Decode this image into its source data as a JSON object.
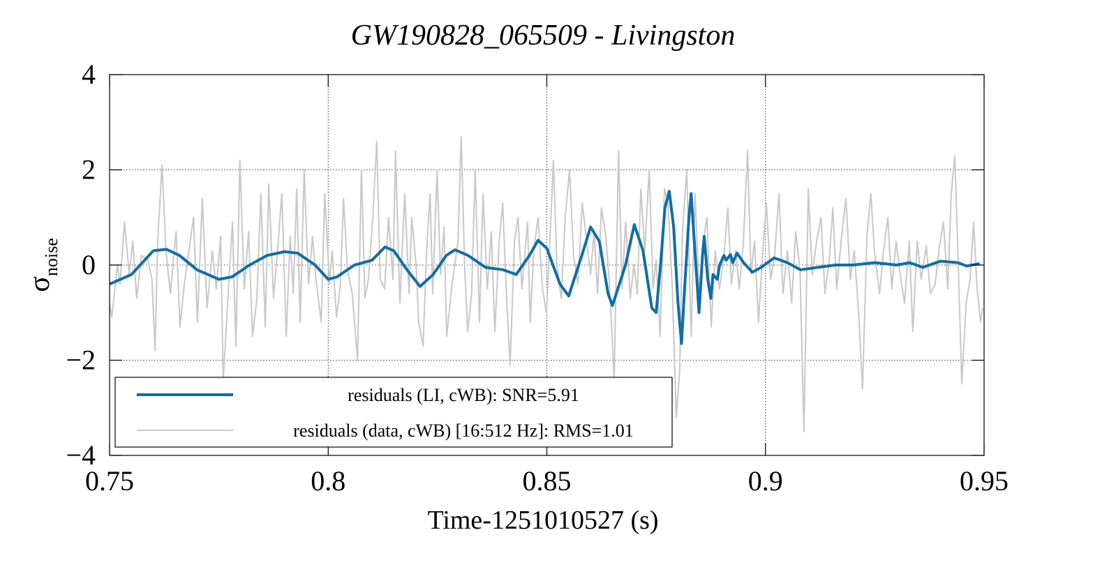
{
  "chart_data": {
    "type": "line",
    "title": "GW190828_065509 - Livingston",
    "xlabel": "Time-1251010527 (s)",
    "ylabel": "σ",
    "ylabel_sub": "noise",
    "xlim": [
      0.75,
      0.95
    ],
    "ylim": [
      -4,
      4
    ],
    "xticks": [
      0.75,
      0.8,
      0.85,
      0.9,
      0.95
    ],
    "yticks": [
      4,
      2,
      0,
      {
        "value": -2,
        "label": "−2"
      },
      {
        "value": -4,
        "label": "−4"
      }
    ],
    "grid": true,
    "legend": "lower left",
    "series": [
      {
        "name": "residuals (data, cWB) [16:512 Hz]: RMS=1.01",
        "color": "#c8c8c8",
        "x": [
          0.75,
          0.7505,
          0.7518,
          0.7524,
          0.7534,
          0.7545,
          0.7553,
          0.7562,
          0.7573,
          0.7588,
          0.7597,
          0.7604,
          0.761,
          0.762,
          0.7629,
          0.7639,
          0.7652,
          0.7661,
          0.7671,
          0.768,
          0.7692,
          0.7701,
          0.7712,
          0.7723,
          0.7735,
          0.7744,
          0.7754,
          0.776,
          0.777,
          0.7781,
          0.7789,
          0.7798,
          0.7808,
          0.7818,
          0.7827,
          0.7837,
          0.7846,
          0.7856,
          0.7864,
          0.7875,
          0.7885,
          0.7894,
          0.7904,
          0.7913,
          0.792,
          0.7928,
          0.7936,
          0.7945,
          0.7955,
          0.7964,
          0.7972,
          0.7984,
          0.7992,
          0.8003,
          0.8009,
          0.8019,
          0.8028,
          0.8035,
          0.8044,
          0.8055,
          0.8067,
          0.8076,
          0.8084,
          0.8092,
          0.8102,
          0.8111,
          0.8119,
          0.8129,
          0.8138,
          0.8148,
          0.8154,
          0.8164,
          0.8175,
          0.8185,
          0.8191,
          0.8201,
          0.8207,
          0.8217,
          0.8225,
          0.8233,
          0.8239,
          0.8249,
          0.8257,
          0.8265,
          0.8271,
          0.8282,
          0.8297,
          0.8304,
          0.8312,
          0.8319,
          0.8328,
          0.8336,
          0.8346,
          0.8354,
          0.8364,
          0.8373,
          0.8381,
          0.8391,
          0.8399,
          0.8408,
          0.8416,
          0.8426,
          0.8434,
          0.8443,
          0.8456,
          0.8462,
          0.847,
          0.848,
          0.849,
          0.8499,
          0.8507,
          0.8515,
          0.8523,
          0.8533,
          0.8542,
          0.8552,
          0.8561,
          0.8571,
          0.8581,
          0.859,
          0.86,
          0.8608,
          0.8616,
          0.8625,
          0.8635,
          0.8644,
          0.8654,
          0.8664,
          0.8672,
          0.868,
          0.8691,
          0.8699,
          0.8707,
          0.8715,
          0.8724,
          0.8734,
          0.8743,
          0.875,
          0.8759,
          0.8769,
          0.8777,
          0.8787,
          0.8796,
          0.8804,
          0.881,
          0.882,
          0.883,
          0.8839,
          0.8849,
          0.8858,
          0.8866,
          0.8876,
          0.8885,
          0.8895,
          0.8905,
          0.8914,
          0.8922,
          0.8932,
          0.894,
          0.8949,
          0.8959,
          0.8967,
          0.8975,
          0.8984,
          0.8994,
          0.9002,
          0.9012,
          0.9021,
          0.9031,
          0.904,
          0.905,
          0.906,
          0.9069,
          0.9079,
          0.9088,
          0.9098,
          0.9107,
          0.9117,
          0.9127,
          0.9136,
          0.9146,
          0.9154,
          0.9163,
          0.9174,
          0.9184,
          0.9194,
          0.9203,
          0.9213,
          0.9222,
          0.9232,
          0.9241,
          0.9249,
          0.9261,
          0.927,
          0.928,
          0.9289,
          0.9299,
          0.9308,
          0.9318,
          0.9329,
          0.9337,
          0.9347,
          0.9356,
          0.9368,
          0.9377,
          0.9388,
          0.9398,
          0.9407,
          0.9417,
          0.9425,
          0.9433,
          0.9441,
          0.9449,
          0.9459,
          0.9468,
          0.9476,
          0.9484,
          0.9492,
          0.9497
        ],
        "values": [
          -0.8,
          -1.1,
          0.0,
          -0.4,
          0.9,
          -0.2,
          0.5,
          -0.7,
          0.2,
          0.1,
          -0.3,
          -1.8,
          0.5,
          2.1,
          0.3,
          -0.6,
          0.7,
          -1.3,
          -0.4,
          0.2,
          1.0,
          -1.2,
          1.4,
          -0.9,
          0.3,
          -0.5,
          0.6,
          -2.4,
          -0.8,
          0.9,
          -1.7,
          2.2,
          -0.5,
          0.7,
          -1.5,
          -0.7,
          1.5,
          -1.3,
          1.7,
          -0.7,
          0.4,
          1.5,
          -1.5,
          0.6,
          -0.6,
          1.6,
          -1.2,
          2.0,
          -0.4,
          0.6,
          -0.3,
          -1.2,
          1.5,
          -0.4,
          0.3,
          -1.1,
          -0.4,
          1.4,
          -0.1,
          -0.6,
          -2.0,
          2.0,
          -0.7,
          -0.3,
          1.0,
          2.6,
          -0.3,
          -0.5,
          1.0,
          -0.3,
          2.4,
          -0.8,
          1.5,
          -0.6,
          1.0,
          0.0,
          -1.2,
          -1.7,
          0.3,
          1.5,
          -0.6,
          2.0,
          -0.2,
          0.8,
          -1.5,
          -0.5,
          0.5,
          2.7,
          0.0,
          -1.4,
          -0.6,
          2.0,
          -1.2,
          1.5,
          -0.5,
          0.7,
          -1.4,
          0.5,
          1.3,
          -0.7,
          -2.1,
          0.5,
          1.0,
          -0.5,
          0.9,
          -1.2,
          0.3,
          1.0,
          -0.5,
          -1.0,
          0.5,
          2.2,
          0.0,
          -0.7,
          1.0,
          2.0,
          0.2,
          -0.4,
          1.3,
          0.6,
          -0.2,
          0.7,
          -0.6,
          1.2,
          0.6,
          -0.5,
          -2.4,
          2.4,
          -0.5,
          0.9,
          -0.7,
          0.0,
          -0.6,
          1.6,
          0.3,
          2.0,
          -0.5,
          0.1,
          -1.5,
          1.6,
          1.3,
          -0.5,
          -3.2,
          -2.2,
          0.7,
          2.0,
          -1.5,
          1.5,
          -0.7,
          0.5,
          1.0,
          -1.3,
          0.3,
          -0.5,
          0.2,
          1.2,
          -0.4,
          0.3,
          -0.5,
          0.4,
          2.4,
          -0.2,
          0.5,
          -1.2,
          0.3,
          1.3,
          -0.3,
          0.2,
          1.5,
          -0.6,
          0.3,
          -0.8,
          0.7,
          -0.1,
          -3.5,
          1.6,
          -0.2,
          0.5,
          1.0,
          -0.6,
          0.1,
          1.2,
          -0.5,
          0.6,
          1.4,
          -0.3,
          0.3,
          -1.0,
          -2.6,
          0.6,
          1.5,
          0.3,
          -0.6,
          0.3,
          1.0,
          -0.5,
          0.5,
          -0.2,
          -0.8,
          0.5,
          -1.4,
          0.5,
          -0.3,
          0.4,
          -0.6,
          -0.4,
          0.4,
          0.9,
          -0.5,
          1.5,
          2.3,
          0.0,
          -2.5,
          -0.8,
          -0.3,
          0.9,
          -0.5,
          -1.2,
          -0.9
        ]
      },
      {
        "name": "residuals (LI, cWB): SNR=5.91",
        "color": "#0f6ea6",
        "x": [
          0.75,
          0.755,
          0.76,
          0.763,
          0.766,
          0.77,
          0.775,
          0.778,
          0.782,
          0.786,
          0.79,
          0.793,
          0.797,
          0.8,
          0.802,
          0.806,
          0.81,
          0.813,
          0.815,
          0.818,
          0.821,
          0.824,
          0.827,
          0.829,
          0.832,
          0.836,
          0.84,
          0.843,
          0.846,
          0.848,
          0.85,
          0.853,
          0.855,
          0.858,
          0.86,
          0.862,
          0.864,
          0.865,
          0.868,
          0.87,
          0.872,
          0.874,
          0.875,
          0.876,
          0.877,
          0.878,
          0.879,
          0.88,
          0.8808,
          0.8815,
          0.8825,
          0.883,
          0.8838,
          0.8848,
          0.8856,
          0.886,
          0.8868,
          0.8875,
          0.888,
          0.889,
          0.8895,
          0.8905,
          0.891,
          0.892,
          0.8925,
          0.8935,
          0.895,
          0.897,
          0.899,
          0.902,
          0.905,
          0.908,
          0.912,
          0.916,
          0.92,
          0.925,
          0.93,
          0.933,
          0.936,
          0.94,
          0.944,
          0.946,
          0.949
        ],
        "values": [
          -0.4,
          -0.2,
          0.3,
          0.33,
          0.2,
          -0.1,
          -0.3,
          -0.25,
          0.0,
          0.2,
          0.28,
          0.25,
          0.0,
          -0.3,
          -0.25,
          0.0,
          0.1,
          0.38,
          0.3,
          -0.1,
          -0.45,
          -0.2,
          0.2,
          0.32,
          0.2,
          -0.05,
          -0.1,
          -0.2,
          0.2,
          0.52,
          0.35,
          -0.4,
          -0.65,
          0.2,
          0.8,
          0.5,
          -0.6,
          -0.85,
          0.0,
          0.85,
          0.3,
          -0.9,
          -1.0,
          0.0,
          1.2,
          1.55,
          0.8,
          -0.8,
          -1.65,
          -0.5,
          1.0,
          1.5,
          0.4,
          -1.0,
          0.2,
          0.6,
          -0.3,
          -0.7,
          -0.2,
          -0.3,
          0.0,
          0.2,
          0.1,
          0.22,
          0.05,
          0.25,
          0.05,
          -0.15,
          -0.05,
          0.15,
          0.05,
          -0.1,
          -0.05,
          0.0,
          0.0,
          0.05,
          0.0,
          0.05,
          -0.05,
          0.08,
          0.05,
          -0.02,
          0.03
        ]
      }
    ]
  }
}
